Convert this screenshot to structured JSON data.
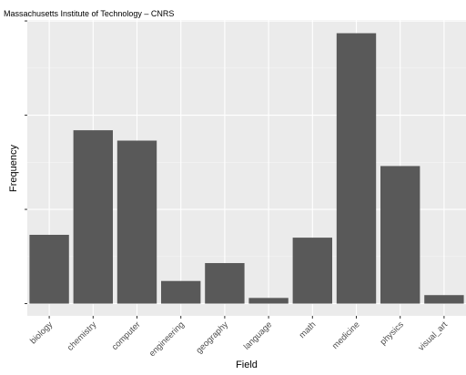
{
  "chart_data": {
    "type": "bar",
    "title": "Massachusetts Institute of Technology – CNRS",
    "xlabel": "Field",
    "ylabel": "Frequency",
    "categories": [
      "biology",
      "chemistry",
      "computer",
      "engineering",
      "geography",
      "language",
      "math",
      "medicine",
      "physics",
      "visual_art"
    ],
    "values": [
      7.3,
      18.4,
      17.3,
      2.4,
      4.3,
      0.6,
      7.0,
      28.7,
      14.6,
      0.9
    ],
    "ylim": [
      -1.3,
      30.1
    ],
    "grid": true,
    "legend": "none",
    "colors": {
      "panel": "#ebebeb",
      "grid_major": "#ffffff",
      "grid_minor": "#f5f5f5",
      "bar": "#595959",
      "tick": "#333333"
    }
  }
}
